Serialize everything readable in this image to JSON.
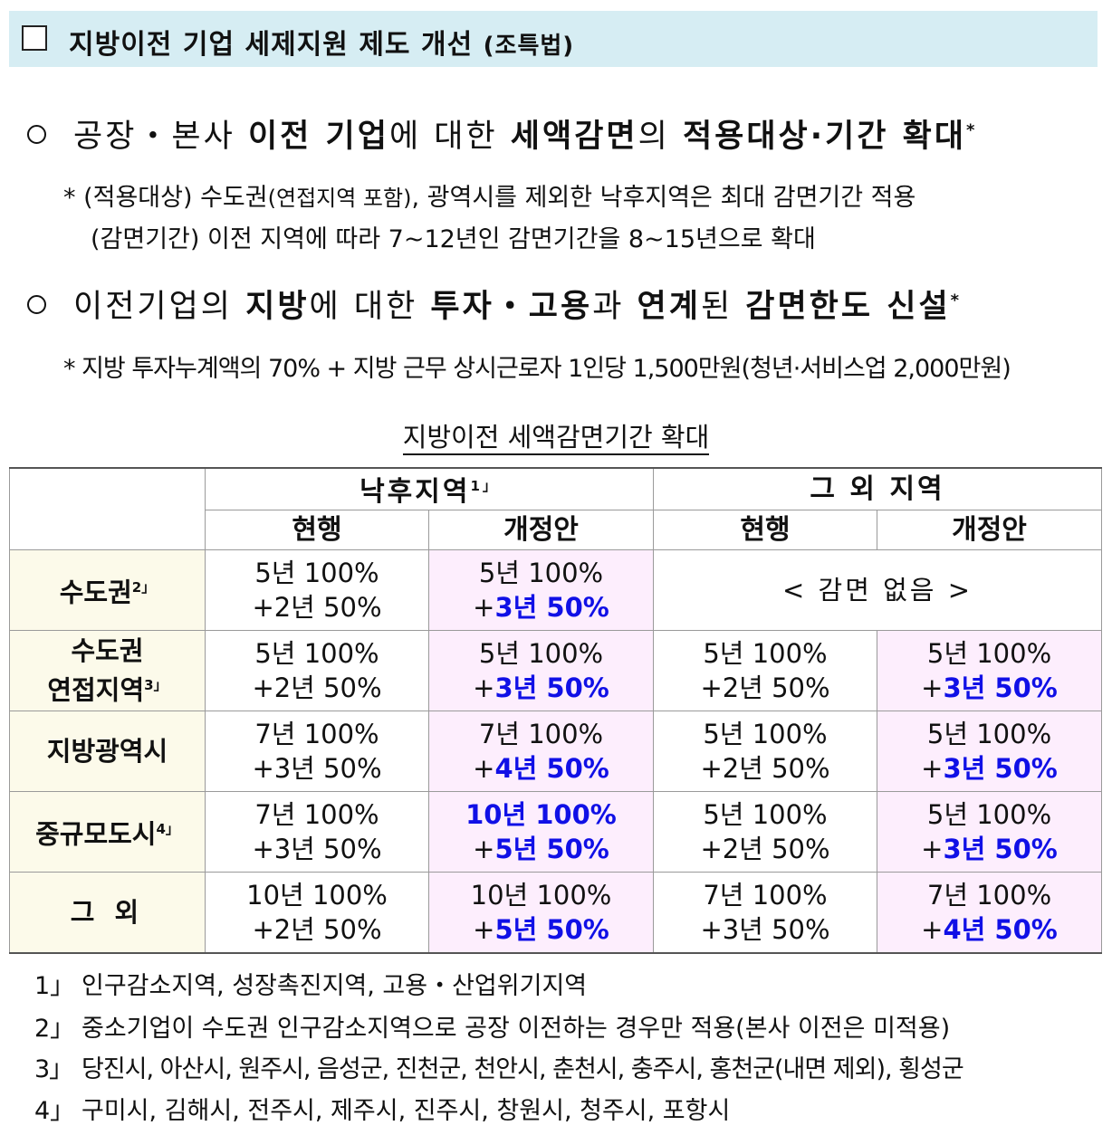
{
  "header": {
    "title": "지방이전 기업 세제지원 제도 개선",
    "title_suffix": "(조특법)"
  },
  "bullets": [
    {
      "parts": [
        "공장・본사 ",
        "이전 기업",
        "에 대한 ",
        "세액감면",
        "의 ",
        "적용대상·기간 확대",
        "*"
      ]
    },
    {
      "parts": [
        "이전기업의 ",
        "지방",
        "에 대한 ",
        "투자・고용",
        "과 ",
        "연계",
        "된 ",
        "감면한도 신설",
        "*"
      ]
    }
  ],
  "notes": {
    "n1_a": "*  (적용대상)  수도권",
    "n1_b": "(연접지역 포함)",
    "n1_c": ", 광역시를 제외한 낙후지역은 최대 감면기간 적용",
    "n2": "(감면기간)  이전 지역에 따라 7~12년인 감면기간을 8~15년으로 확대",
    "n3": "*  지방 투자누계액의 70% + 지방 근무 상시근로자 1인당 1,500만원(청년·서비스업 2,000만원)"
  },
  "table": {
    "caption": "지방이전 세액감면기간 확대",
    "group_headers": [
      "낙후지역",
      "그 외 지역"
    ],
    "group1_footnote": "1」",
    "sub_headers": [
      "현행",
      "개정안",
      "현행",
      "개정안"
    ],
    "no_reduction": "< 감면 없음 >",
    "rows": [
      {
        "label_line1": "수도권",
        "label_line2": "",
        "footnote": "2」",
        "c1": [
          "5년 100%",
          "+2년 50%"
        ],
        "c2": [
          "5년 100%",
          "+",
          "3년 50%"
        ],
        "c3": null,
        "c4": null
      },
      {
        "label_line1": "수도권",
        "label_line2": "연접지역",
        "footnote": "3」",
        "c1": [
          "5년 100%",
          "+2년 50%"
        ],
        "c2": [
          "5년 100%",
          "+",
          "3년 50%"
        ],
        "c3": [
          "5년 100%",
          "+2년 50%"
        ],
        "c4": [
          "5년 100%",
          "+",
          "3년 50%"
        ]
      },
      {
        "label_line1": "지방광역시",
        "label_line2": "",
        "footnote": "",
        "c1": [
          "7년 100%",
          "+3년 50%"
        ],
        "c2": [
          "7년 100%",
          "+",
          "4년 50%"
        ],
        "c3": [
          "5년 100%",
          "+2년 50%"
        ],
        "c4": [
          "5년 100%",
          "+",
          "3년 50%"
        ]
      },
      {
        "label_line1": "중규모도시",
        "label_line2": "",
        "footnote": "4」",
        "c1": [
          "7년 100%",
          "+3년 50%"
        ],
        "c2": [
          "10년 100%",
          "+",
          "5년 50%"
        ],
        "c3": [
          "5년 100%",
          "+2년 50%"
        ],
        "c4": [
          "5년 100%",
          "+",
          "3년 50%"
        ]
      },
      {
        "label_line1": "그 외",
        "label_line2": "",
        "footnote": "",
        "c1": [
          "10년 100%",
          "+2년 50%"
        ],
        "c2": [
          "10년 100%",
          "+",
          "5년 50%"
        ],
        "c3": [
          "7년 100%",
          "+3년 50%"
        ],
        "c4": [
          "7년 100%",
          "+",
          "4년 50%"
        ]
      }
    ]
  },
  "footnotes": [
    {
      "num": "1」",
      "text": "인구감소지역, 성장촉진지역, 고용・산업위기지역"
    },
    {
      "num": "2」",
      "text": "중소기업이 수도권 인구감소지역으로 공장 이전하는 경우만 적용(본사 이전은 미적용)"
    },
    {
      "num": "3」",
      "text": "당진시, 아산시, 원주시, 음성군, 진천군, 천안시, 춘천시, 충주시, 홍천군(내면 제외), 횡성군"
    },
    {
      "num": "4」",
      "text": "구미시, 김해시, 전주시, 제주시, 진주시, 창원시, 청주시, 포항시"
    }
  ],
  "colors": {
    "header_bg": "#d6edf3",
    "row_header_bg": "#fcfaea",
    "revised_bg": "#fdeefd",
    "emphasis_blue": "#1010e6"
  }
}
